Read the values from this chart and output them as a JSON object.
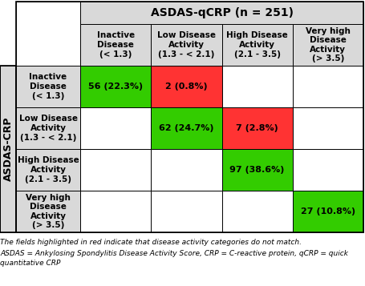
{
  "title": "ASDAS-qCRP (n = 251)",
  "col_headers": [
    "Inactive\nDisease\n(< 1.3)",
    "Low Disease\nActivity\n(1.3 - < 2.1)",
    "High Disease\nActivity\n(2.1 - 3.5)",
    "Very high\nDisease\nActivity\n(> 3.5)"
  ],
  "row_headers": [
    "Inactive\nDisease\n(< 1.3)",
    "Low Disease\nActivity\n(1.3 - < 2.1)",
    "High Disease\nActivity\n(2.1 - 3.5)",
    "Very high\nDisease\nActivity\n(> 3.5)"
  ],
  "y_label": "ASDAS-CRP",
  "cells": [
    [
      {
        "text": "56 (22.3%)",
        "color": "#33cc00"
      },
      {
        "text": "2 (0.8%)",
        "color": "#ff3333"
      },
      {
        "text": "",
        "color": "#ffffff"
      },
      {
        "text": "",
        "color": "#ffffff"
      }
    ],
    [
      {
        "text": "",
        "color": "#ffffff"
      },
      {
        "text": "62 (24.7%)",
        "color": "#33cc00"
      },
      {
        "text": "7 (2.8%)",
        "color": "#ff3333"
      },
      {
        "text": "",
        "color": "#ffffff"
      }
    ],
    [
      {
        "text": "",
        "color": "#ffffff"
      },
      {
        "text": "",
        "color": "#ffffff"
      },
      {
        "text": "97 (38.6%)",
        "color": "#33cc00"
      },
      {
        "text": "",
        "color": "#ffffff"
      }
    ],
    [
      {
        "text": "",
        "color": "#ffffff"
      },
      {
        "text": "",
        "color": "#ffffff"
      },
      {
        "text": "",
        "color": "#ffffff"
      },
      {
        "text": "27 (10.8%)",
        "color": "#33cc00"
      }
    ]
  ],
  "footnote1": "The fields highlighted in red indicate that disease activity categories do not match.",
  "footnote2": "ASDAS = Ankylosing Spondylitis Disease Activity Score, CRP = C-reactive protein, qCRP = quick",
  "footnote3": "quantitative CRP",
  "header_bg": "#d9d9d9",
  "row_header_bg": "#d9d9d9",
  "border_color": "#000000",
  "title_fontsize": 10,
  "header_fontsize": 7.5,
  "cell_fontsize": 8,
  "footnote_fontsize": 6.5
}
